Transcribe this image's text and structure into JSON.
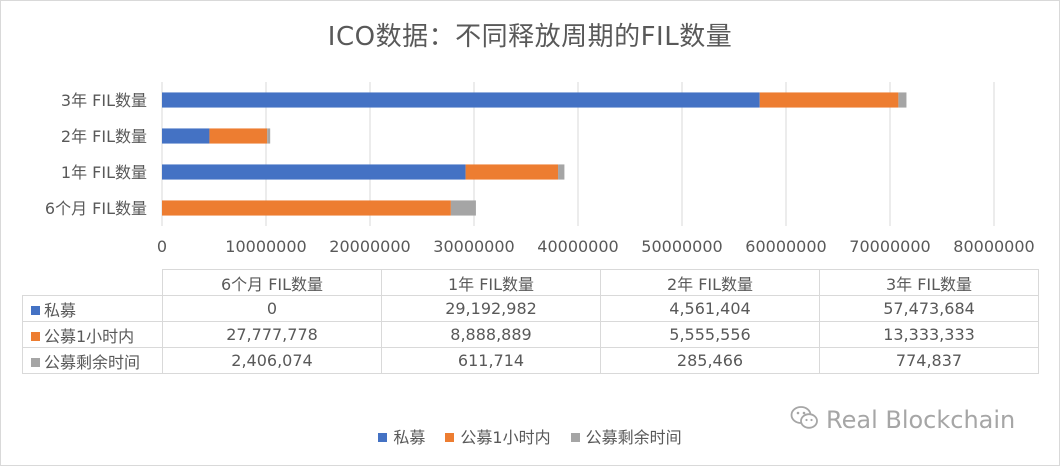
{
  "chart_data": {
    "type": "bar",
    "orientation": "horizontal",
    "stacked": true,
    "title": "ICO数据：不同释放周期的FIL数量",
    "categories": [
      "6个月 FIL数量",
      "1年 FIL数量",
      "2年 FIL数量",
      "3年 FIL数量"
    ],
    "series": [
      {
        "name": "私募",
        "color": "#4472c4",
        "values": [
          0,
          29192982,
          4561404,
          57473684
        ],
        "labels": [
          "0",
          "29,192,982",
          "4,561,404",
          "57,473,684"
        ]
      },
      {
        "name": "公募1小时内",
        "color": "#ed7d31",
        "values": [
          27777778,
          8888889,
          5555556,
          13333333
        ],
        "labels": [
          "27,777,778",
          "8,888,889",
          "5,555,556",
          "13,333,333"
        ]
      },
      {
        "name": "公募剩余时间",
        "color": "#a5a5a5",
        "values": [
          2406074,
          611714,
          285466,
          774837
        ],
        "labels": [
          "2,406,074",
          "611,714",
          "285,466",
          "774,837"
        ]
      }
    ],
    "xlim": [
      0,
      80000000
    ],
    "x_ticks": [
      "0",
      "10000000",
      "20000000",
      "30000000",
      "40000000",
      "50000000",
      "60000000",
      "70000000",
      "80000000"
    ],
    "grid": true,
    "legend": "bottom",
    "data_table": true
  },
  "watermark": "Real Blockchain"
}
